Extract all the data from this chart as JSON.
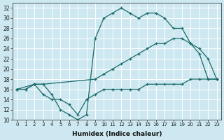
{
  "xlabel": "Humidex (Indice chaleur)",
  "ylabel": "",
  "xlim": [
    -0.5,
    23.5
  ],
  "ylim": [
    10,
    33
  ],
  "yticks": [
    10,
    12,
    14,
    16,
    18,
    20,
    22,
    24,
    26,
    28,
    30,
    32
  ],
  "xticks": [
    0,
    1,
    2,
    3,
    4,
    5,
    6,
    7,
    8,
    9,
    10,
    11,
    12,
    13,
    14,
    15,
    16,
    17,
    18,
    19,
    20,
    21,
    22,
    23
  ],
  "bg_color": "#cde8f0",
  "line_color": "#1a6b6b",
  "grid_color": "#ffffff",
  "line_top_x": [
    0,
    1,
    2,
    3,
    4,
    5,
    6,
    7,
    8,
    9,
    10,
    11,
    12,
    13,
    14,
    15,
    16,
    17,
    18,
    19,
    20,
    21,
    22,
    23
  ],
  "line_top_y": [
    16,
    16,
    17,
    17,
    15,
    12,
    11,
    10,
    11,
    26,
    30,
    31,
    32,
    31,
    30,
    31,
    31,
    30,
    28,
    28,
    25,
    23,
    18,
    18
  ],
  "line_mid_x": [
    0,
    2,
    3,
    9,
    10,
    11,
    12,
    13,
    14,
    15,
    16,
    17,
    18,
    19,
    20,
    21,
    22,
    23
  ],
  "line_mid_y": [
    16,
    17,
    17,
    18,
    19,
    20,
    21,
    22,
    23,
    24,
    25,
    25,
    26,
    26,
    25,
    24,
    22,
    18
  ],
  "line_bot_x": [
    0,
    1,
    2,
    3,
    4,
    5,
    6,
    7,
    8,
    9,
    10,
    11,
    12,
    13,
    14,
    15,
    16,
    17,
    18,
    19,
    20,
    21,
    22,
    23
  ],
  "line_bot_y": [
    16,
    16,
    17,
    15,
    14,
    14,
    13,
    11,
    14,
    15,
    16,
    16,
    16,
    16,
    16,
    17,
    17,
    17,
    17,
    17,
    18,
    18,
    18,
    18
  ]
}
